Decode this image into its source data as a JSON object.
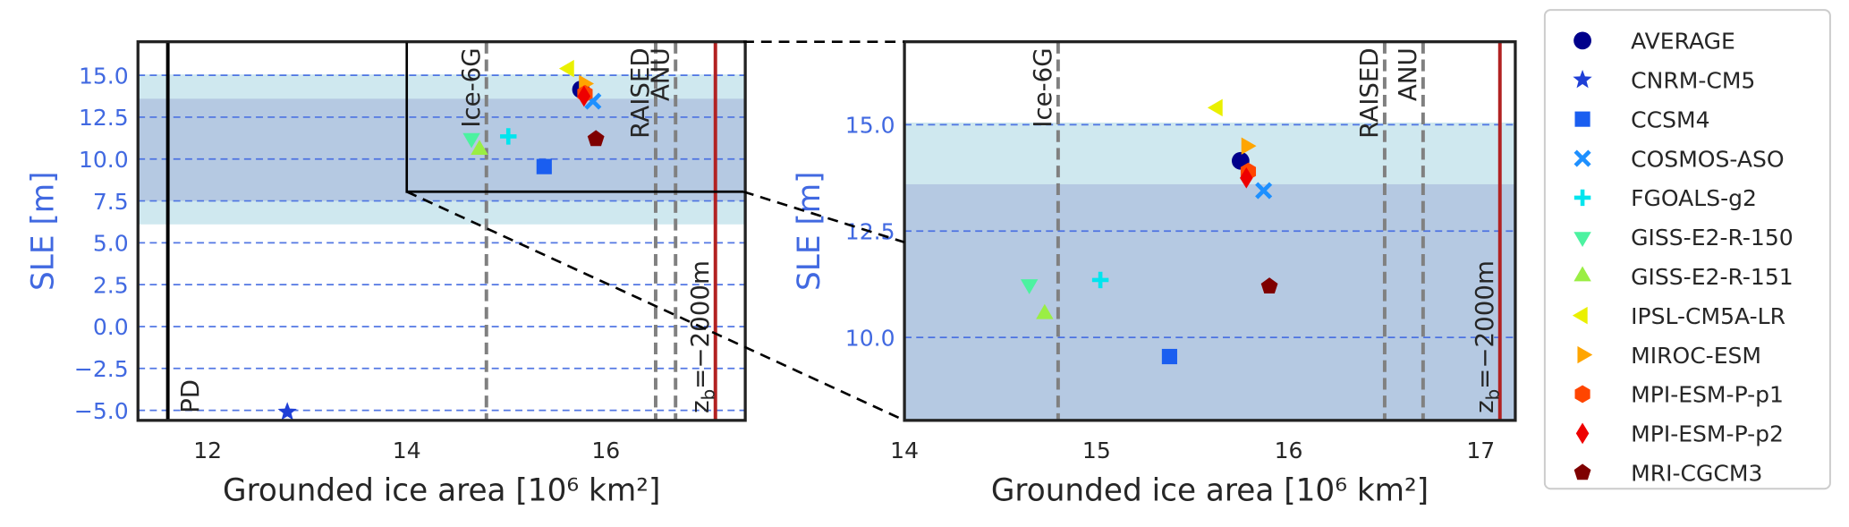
{
  "chart_data": {
    "type": "scatter",
    "legend": "outside right",
    "series": [
      {
        "name": "AVERAGE",
        "color": "#00008b",
        "marker": "circle",
        "x": 15.75,
        "y": 14.15
      },
      {
        "name": "CNRM-CM5",
        "color": "#1f3fd6",
        "marker": "star",
        "x": 12.8,
        "y": -5.1
      },
      {
        "name": "CCSM4",
        "color": "#1a5ef0",
        "marker": "square",
        "x": 15.38,
        "y": 9.55
      },
      {
        "name": "COSMOS-ASO",
        "color": "#1e90ff",
        "marker": "x",
        "x": 15.87,
        "y": 13.45
      },
      {
        "name": "FGOALS-g2",
        "color": "#00e5ee",
        "marker": "plus",
        "x": 15.02,
        "y": 11.35
      },
      {
        "name": "GISS-E2-R-150",
        "color": "#4cf2a0",
        "marker": "triangle-down",
        "x": 14.65,
        "y": 11.25
      },
      {
        "name": "GISS-E2-R-151",
        "color": "#9aee44",
        "marker": "triangle-up",
        "x": 14.73,
        "y": 10.55
      },
      {
        "name": "IPSL-CM5A-LR",
        "color": "#eaf000",
        "marker": "triangle-left",
        "x": 15.63,
        "y": 15.4
      },
      {
        "name": "MIROC-ESM",
        "color": "#ffa500",
        "marker": "triangle-right",
        "x": 15.78,
        "y": 14.5
      },
      {
        "name": "MPI-ESM-P-p1",
        "color": "#ff4500",
        "marker": "hexagon",
        "x": 15.79,
        "y": 13.9
      },
      {
        "name": "MPI-ESM-P-p2",
        "color": "#ee0000",
        "marker": "diamond",
        "x": 15.78,
        "y": 13.75
      },
      {
        "name": "MRI-CGCM3",
        "color": "#7f0000",
        "marker": "pentagon",
        "x": 15.9,
        "y": 11.2
      }
    ],
    "vlines": [
      {
        "x": 11.6,
        "label": "PD",
        "color": "#000000",
        "style": "solid",
        "label_pos": "bottom-right"
      },
      {
        "x": 14.8,
        "label": "Ice-6G",
        "color": "#808080",
        "style": "dashed",
        "label_pos": "top-left"
      },
      {
        "x": 16.5,
        "label": "RAISED",
        "color": "#808080",
        "style": "dashed",
        "label_pos": "top-left"
      },
      {
        "x": 16.7,
        "label": "ANU",
        "color": "#808080",
        "style": "dashed",
        "label_pos": "top-left"
      },
      {
        "x": 17.1,
        "label": {
          "text": "z",
          "subscript": "b",
          "suffix": "=−2000m"
        },
        "color": "#b22222",
        "style": "solid",
        "label_pos": "bottom-left"
      }
    ],
    "bands": [
      {
        "ymin": 6.1,
        "ymax": 15.05,
        "color": "#cfe8ef"
      },
      {
        "ymin": 7.5,
        "ymax": 13.6,
        "color": "#b5c9e2"
      }
    ],
    "panels": [
      {
        "xlim": [
          11.3,
          17.4
        ],
        "ylim": [
          -5.6,
          17
        ],
        "xticks": [
          12,
          14,
          16
        ],
        "yticks": [
          {
            "value": -5,
            "label": "−5.0"
          },
          {
            "value": -2.5,
            "label": "−2.5"
          },
          {
            "value": 0,
            "label": "0.0"
          },
          {
            "value": 2.5,
            "label": "2.5"
          },
          {
            "value": 5,
            "label": "5.0"
          },
          {
            "value": 7.5,
            "label": "7.5"
          },
          {
            "value": 10,
            "label": "10.0"
          },
          {
            "value": 12.5,
            "label": "12.5"
          },
          {
            "value": 15,
            "label": "15.0"
          }
        ],
        "xlabel": "Grounded ice area [10⁶ km²]",
        "ylabel": "SLE [m]",
        "grid": true
      },
      {
        "xlim": [
          14,
          17.18
        ],
        "ylim": [
          8.05,
          16.95
        ],
        "xticks": [
          14,
          15,
          16,
          17
        ],
        "yticks": [
          {
            "value": 10,
            "label": "10.0"
          },
          {
            "value": 12.5,
            "label": "12.5"
          },
          {
            "value": 15,
            "label": "15.0"
          }
        ],
        "xlabel": "Grounded ice area [10⁶ km²]",
        "ylabel": "SLE [m]",
        "grid": true
      }
    ]
  }
}
